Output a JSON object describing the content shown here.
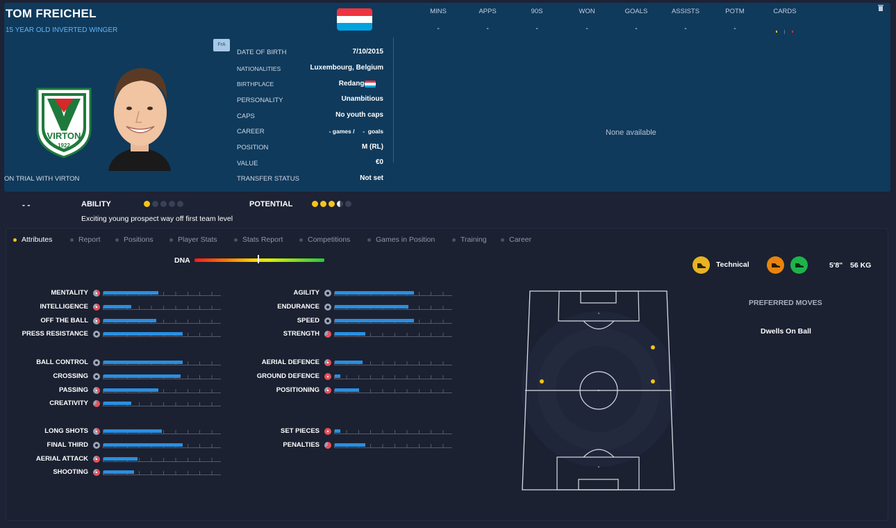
{
  "header": {
    "name": "TOM FREICHEL",
    "subtitle": "15 YEAR OLD INVERTED WINGER",
    "fra_badge": "FrA",
    "trial_status": "ON TRIAL WITH VIRTON",
    "club_crest": {
      "name": "VIRTON",
      "year": "1922"
    },
    "flag_colors": [
      "#ef3340",
      "#ffffff",
      "#00a3e0"
    ]
  },
  "info": {
    "date_of_birth": {
      "label": "DATE OF BIRTH",
      "value": "7/10/2015"
    },
    "nationalities": {
      "label": "NATIONALITIES",
      "value": "Luxembourg, Belgium"
    },
    "birthplace": {
      "label": "BIRTHPLACE",
      "value": "Redange"
    },
    "personality": {
      "label": "PERSONALITY",
      "value": "Unambitious"
    },
    "caps": {
      "label": "CAPS",
      "value": "No youth caps"
    },
    "career": {
      "label": "CAREER",
      "value": "- games /     -  goals"
    },
    "position": {
      "label": "POSITION",
      "value": "M (RL)"
    },
    "value": {
      "label": "VALUE",
      "value": "€0"
    },
    "transfer_status": {
      "label": "TRANSFER STATUS",
      "value": "Not set"
    }
  },
  "stats": {
    "headers": [
      "MINS",
      "APPS",
      "90S",
      "WON",
      "GOALS",
      "ASSISTS",
      "POTM",
      "CARDS"
    ],
    "values": [
      "-",
      "-",
      "-",
      "-",
      "-",
      "-",
      "-",
      "-"
    ],
    "empty_message": "None available"
  },
  "ability": {
    "dash": "- -",
    "ability_label": "ABILITY",
    "potential_label": "POTENTIAL",
    "ability_stars": 1,
    "potential_stars": 3.5,
    "max_stars": 5,
    "scout_line": "Exciting young prospect way off first team level",
    "star_color": "#f5c518"
  },
  "tabs": [
    {
      "label": "Attributes",
      "active": true
    },
    {
      "label": "Report",
      "active": false
    },
    {
      "label": "Positions",
      "active": false
    },
    {
      "label": "Player Stats",
      "active": false
    },
    {
      "label": "Stats Report",
      "active": false
    },
    {
      "label": "Competitions",
      "active": false
    },
    {
      "label": "Games in Position",
      "active": false
    },
    {
      "label": "Training",
      "active": false
    },
    {
      "label": "Career",
      "active": false
    }
  ],
  "dna": {
    "label": "DNA",
    "marker": 0.49
  },
  "traits": {
    "label": "Technical",
    "height": "5'8\"",
    "weight": "56 KG",
    "colors": {
      "technical": "#e8b320",
      "boot_orange": "#e8840e",
      "boot_green": "#1eb34a"
    }
  },
  "attributes_left": [
    {
      "group": 0,
      "label": "MENTALITY",
      "fill": 0.47,
      "icon": "red-half"
    },
    {
      "group": 0,
      "label": "INTELLIGENCE",
      "fill": 0.24,
      "icon": "red"
    },
    {
      "group": 0,
      "label": "OFF THE BALL",
      "fill": 0.45,
      "icon": "red-half"
    },
    {
      "group": 0,
      "label": "PRESS RESISTANCE",
      "fill": 0.68,
      "icon": "grey"
    },
    {
      "group": 1,
      "label": "BALL CONTROL",
      "fill": 0.68,
      "icon": "grey"
    },
    {
      "group": 1,
      "label": "CROSSING",
      "fill": 0.66,
      "icon": "grey"
    },
    {
      "group": 1,
      "label": "PASSING",
      "fill": 0.47,
      "icon": "red-half"
    },
    {
      "group": 1,
      "label": "CREATIVITY",
      "fill": 0.24,
      "icon": "red-pie"
    },
    {
      "group": 2,
      "label": "LONG SHOTS",
      "fill": 0.5,
      "icon": "red-half"
    },
    {
      "group": 2,
      "label": "FINAL THIRD",
      "fill": 0.68,
      "icon": "grey"
    },
    {
      "group": 2,
      "label": "AERIAL ATTACK",
      "fill": 0.29,
      "icon": "red"
    },
    {
      "group": 2,
      "label": "SHOOTING",
      "fill": 0.26,
      "icon": "red"
    }
  ],
  "attributes_right": [
    {
      "group": 0,
      "label": "AGILITY",
      "fill": 0.68,
      "icon": "grey"
    },
    {
      "group": 0,
      "label": "ENDURANCE",
      "fill": 0.63,
      "icon": "grey"
    },
    {
      "group": 0,
      "label": "SPEED",
      "fill": 0.68,
      "icon": "grey"
    },
    {
      "group": 0,
      "label": "STRENGTH",
      "fill": 0.26,
      "icon": "red-pie"
    },
    {
      "group": 1,
      "label": "AERIAL DEFENCE",
      "fill": 0.24,
      "icon": "red"
    },
    {
      "group": 1,
      "label": "GROUND DEFENCE",
      "fill": 0.05,
      "icon": "red-full"
    },
    {
      "group": 1,
      "label": "POSITIONING",
      "fill": 0.21,
      "icon": "red"
    },
    {
      "group": 2,
      "label": "SET PIECES",
      "fill": 0.05,
      "icon": "red-full"
    },
    {
      "group": 2,
      "label": "PENALTIES",
      "fill": 0.26,
      "icon": "red-pie"
    }
  ],
  "preferred_moves": {
    "title": "PREFERRED MOVES",
    "moves": [
      "Dwells On Ball"
    ]
  }
}
